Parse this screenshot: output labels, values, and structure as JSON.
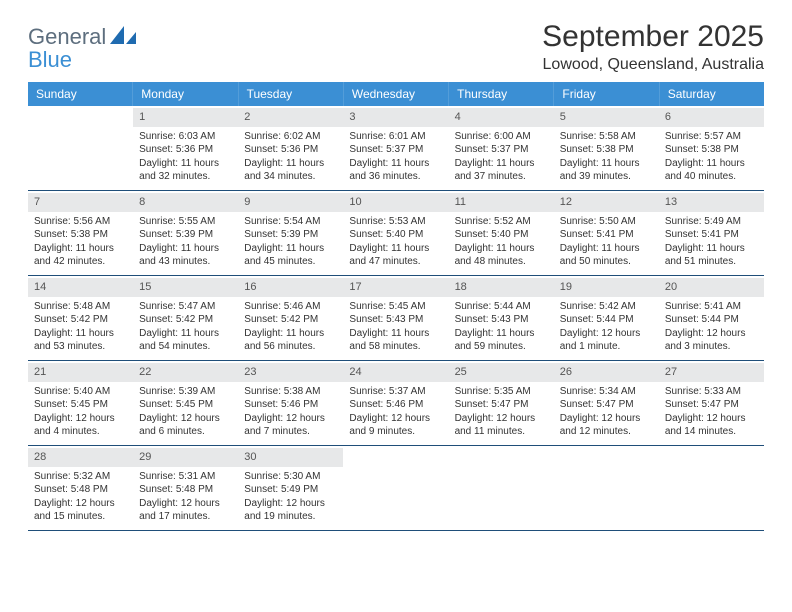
{
  "logo": {
    "main": "General",
    "sub": "Blue",
    "main_color": "#5d6e7e",
    "sub_color": "#3b8fd4",
    "icon_color": "#1f6bb0"
  },
  "header": {
    "month_title": "September 2025",
    "location": "Lowood, Queensland, Australia"
  },
  "colors": {
    "header_bg": "#3b8fd4",
    "header_text": "#ffffff",
    "daynum_bg": "#e7e8e9",
    "row_border": "#1f4e79",
    "text": "#333333"
  },
  "day_headers": [
    "Sunday",
    "Monday",
    "Tuesday",
    "Wednesday",
    "Thursday",
    "Friday",
    "Saturday"
  ],
  "weeks": [
    [
      {
        "day": "",
        "sunrise": "",
        "sunset": "",
        "daylight1": "",
        "daylight2": ""
      },
      {
        "day": "1",
        "sunrise": "Sunrise: 6:03 AM",
        "sunset": "Sunset: 5:36 PM",
        "daylight1": "Daylight: 11 hours",
        "daylight2": "and 32 minutes."
      },
      {
        "day": "2",
        "sunrise": "Sunrise: 6:02 AM",
        "sunset": "Sunset: 5:36 PM",
        "daylight1": "Daylight: 11 hours",
        "daylight2": "and 34 minutes."
      },
      {
        "day": "3",
        "sunrise": "Sunrise: 6:01 AM",
        "sunset": "Sunset: 5:37 PM",
        "daylight1": "Daylight: 11 hours",
        "daylight2": "and 36 minutes."
      },
      {
        "day": "4",
        "sunrise": "Sunrise: 6:00 AM",
        "sunset": "Sunset: 5:37 PM",
        "daylight1": "Daylight: 11 hours",
        "daylight2": "and 37 minutes."
      },
      {
        "day": "5",
        "sunrise": "Sunrise: 5:58 AM",
        "sunset": "Sunset: 5:38 PM",
        "daylight1": "Daylight: 11 hours",
        "daylight2": "and 39 minutes."
      },
      {
        "day": "6",
        "sunrise": "Sunrise: 5:57 AM",
        "sunset": "Sunset: 5:38 PM",
        "daylight1": "Daylight: 11 hours",
        "daylight2": "and 40 minutes."
      }
    ],
    [
      {
        "day": "7",
        "sunrise": "Sunrise: 5:56 AM",
        "sunset": "Sunset: 5:38 PM",
        "daylight1": "Daylight: 11 hours",
        "daylight2": "and 42 minutes."
      },
      {
        "day": "8",
        "sunrise": "Sunrise: 5:55 AM",
        "sunset": "Sunset: 5:39 PM",
        "daylight1": "Daylight: 11 hours",
        "daylight2": "and 43 minutes."
      },
      {
        "day": "9",
        "sunrise": "Sunrise: 5:54 AM",
        "sunset": "Sunset: 5:39 PM",
        "daylight1": "Daylight: 11 hours",
        "daylight2": "and 45 minutes."
      },
      {
        "day": "10",
        "sunrise": "Sunrise: 5:53 AM",
        "sunset": "Sunset: 5:40 PM",
        "daylight1": "Daylight: 11 hours",
        "daylight2": "and 47 minutes."
      },
      {
        "day": "11",
        "sunrise": "Sunrise: 5:52 AM",
        "sunset": "Sunset: 5:40 PM",
        "daylight1": "Daylight: 11 hours",
        "daylight2": "and 48 minutes."
      },
      {
        "day": "12",
        "sunrise": "Sunrise: 5:50 AM",
        "sunset": "Sunset: 5:41 PM",
        "daylight1": "Daylight: 11 hours",
        "daylight2": "and 50 minutes."
      },
      {
        "day": "13",
        "sunrise": "Sunrise: 5:49 AM",
        "sunset": "Sunset: 5:41 PM",
        "daylight1": "Daylight: 11 hours",
        "daylight2": "and 51 minutes."
      }
    ],
    [
      {
        "day": "14",
        "sunrise": "Sunrise: 5:48 AM",
        "sunset": "Sunset: 5:42 PM",
        "daylight1": "Daylight: 11 hours",
        "daylight2": "and 53 minutes."
      },
      {
        "day": "15",
        "sunrise": "Sunrise: 5:47 AM",
        "sunset": "Sunset: 5:42 PM",
        "daylight1": "Daylight: 11 hours",
        "daylight2": "and 54 minutes."
      },
      {
        "day": "16",
        "sunrise": "Sunrise: 5:46 AM",
        "sunset": "Sunset: 5:42 PM",
        "daylight1": "Daylight: 11 hours",
        "daylight2": "and 56 minutes."
      },
      {
        "day": "17",
        "sunrise": "Sunrise: 5:45 AM",
        "sunset": "Sunset: 5:43 PM",
        "daylight1": "Daylight: 11 hours",
        "daylight2": "and 58 minutes."
      },
      {
        "day": "18",
        "sunrise": "Sunrise: 5:44 AM",
        "sunset": "Sunset: 5:43 PM",
        "daylight1": "Daylight: 11 hours",
        "daylight2": "and 59 minutes."
      },
      {
        "day": "19",
        "sunrise": "Sunrise: 5:42 AM",
        "sunset": "Sunset: 5:44 PM",
        "daylight1": "Daylight: 12 hours",
        "daylight2": "and 1 minute."
      },
      {
        "day": "20",
        "sunrise": "Sunrise: 5:41 AM",
        "sunset": "Sunset: 5:44 PM",
        "daylight1": "Daylight: 12 hours",
        "daylight2": "and 3 minutes."
      }
    ],
    [
      {
        "day": "21",
        "sunrise": "Sunrise: 5:40 AM",
        "sunset": "Sunset: 5:45 PM",
        "daylight1": "Daylight: 12 hours",
        "daylight2": "and 4 minutes."
      },
      {
        "day": "22",
        "sunrise": "Sunrise: 5:39 AM",
        "sunset": "Sunset: 5:45 PM",
        "daylight1": "Daylight: 12 hours",
        "daylight2": "and 6 minutes."
      },
      {
        "day": "23",
        "sunrise": "Sunrise: 5:38 AM",
        "sunset": "Sunset: 5:46 PM",
        "daylight1": "Daylight: 12 hours",
        "daylight2": "and 7 minutes."
      },
      {
        "day": "24",
        "sunrise": "Sunrise: 5:37 AM",
        "sunset": "Sunset: 5:46 PM",
        "daylight1": "Daylight: 12 hours",
        "daylight2": "and 9 minutes."
      },
      {
        "day": "25",
        "sunrise": "Sunrise: 5:35 AM",
        "sunset": "Sunset: 5:47 PM",
        "daylight1": "Daylight: 12 hours",
        "daylight2": "and 11 minutes."
      },
      {
        "day": "26",
        "sunrise": "Sunrise: 5:34 AM",
        "sunset": "Sunset: 5:47 PM",
        "daylight1": "Daylight: 12 hours",
        "daylight2": "and 12 minutes."
      },
      {
        "day": "27",
        "sunrise": "Sunrise: 5:33 AM",
        "sunset": "Sunset: 5:47 PM",
        "daylight1": "Daylight: 12 hours",
        "daylight2": "and 14 minutes."
      }
    ],
    [
      {
        "day": "28",
        "sunrise": "Sunrise: 5:32 AM",
        "sunset": "Sunset: 5:48 PM",
        "daylight1": "Daylight: 12 hours",
        "daylight2": "and 15 minutes."
      },
      {
        "day": "29",
        "sunrise": "Sunrise: 5:31 AM",
        "sunset": "Sunset: 5:48 PM",
        "daylight1": "Daylight: 12 hours",
        "daylight2": "and 17 minutes."
      },
      {
        "day": "30",
        "sunrise": "Sunrise: 5:30 AM",
        "sunset": "Sunset: 5:49 PM",
        "daylight1": "Daylight: 12 hours",
        "daylight2": "and 19 minutes."
      },
      {
        "day": "",
        "sunrise": "",
        "sunset": "",
        "daylight1": "",
        "daylight2": ""
      },
      {
        "day": "",
        "sunrise": "",
        "sunset": "",
        "daylight1": "",
        "daylight2": ""
      },
      {
        "day": "",
        "sunrise": "",
        "sunset": "",
        "daylight1": "",
        "daylight2": ""
      },
      {
        "day": "",
        "sunrise": "",
        "sunset": "",
        "daylight1": "",
        "daylight2": ""
      }
    ]
  ]
}
